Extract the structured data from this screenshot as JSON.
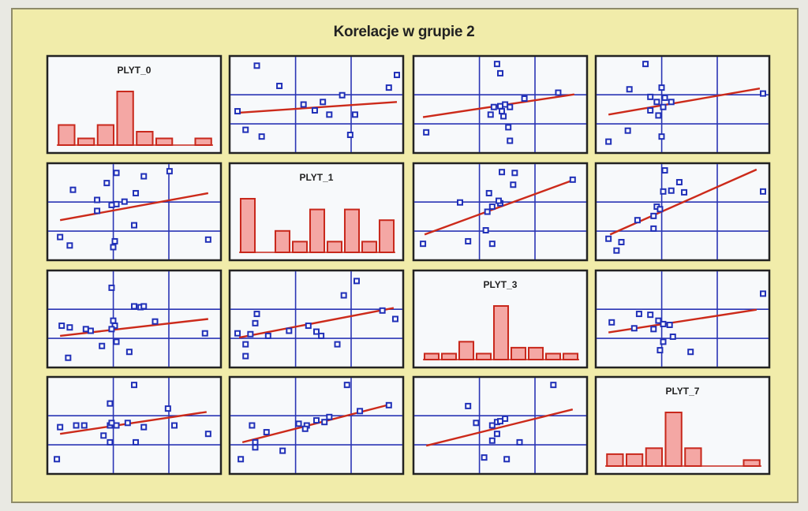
{
  "title": "Korelacje w grupie 2",
  "colors": {
    "background": "#f1ecaa",
    "panel": "#f7f9fb",
    "border": "#222222",
    "grid": "#2a35b5",
    "points": "#2030b8",
    "trend": "#cc2a1a",
    "bar_fill": "#f4a7a4",
    "bar_edge": "#c8281c"
  },
  "chart_data": {
    "type": "scatter",
    "variables": [
      "PLYT_0",
      "PLYT_1",
      "PLYT_3",
      "PLYT_7"
    ],
    "cells": [
      {
        "row": 0,
        "col": 0,
        "kind": "histogram",
        "label": "PLYT_0",
        "values": [
          3,
          1,
          3,
          8,
          2,
          1,
          0,
          1
        ]
      },
      {
        "row": 0,
        "col": 1,
        "kind": "scatter",
        "trend": [
          [
            0,
            0.4
          ],
          [
            1,
            0.53
          ]
        ],
        "points": [
          [
            0.13,
            0.96
          ],
          [
            0.01,
            0.42
          ],
          [
            0.27,
            0.72
          ],
          [
            0.49,
            0.43
          ],
          [
            0.54,
            0.53
          ],
          [
            0.06,
            0.2
          ],
          [
            0.16,
            0.12
          ],
          [
            0.42,
            0.5
          ],
          [
            0.58,
            0.38
          ],
          [
            0.66,
            0.61
          ],
          [
            0.74,
            0.38
          ],
          [
            0.71,
            0.14
          ],
          [
            0.95,
            0.7
          ],
          [
            1,
            0.85
          ]
        ]
      },
      {
        "row": 0,
        "col": 2,
        "kind": "scatter",
        "trend": [
          [
            0.02,
            0.35
          ],
          [
            0.96,
            0.62
          ]
        ],
        "points": [
          [
            0.48,
            0.98
          ],
          [
            0.5,
            0.87
          ],
          [
            0.51,
            0.42
          ],
          [
            0.44,
            0.38
          ],
          [
            0.46,
            0.47
          ],
          [
            0.5,
            0.48
          ],
          [
            0.53,
            0.5
          ],
          [
            0.56,
            0.47
          ],
          [
            0.65,
            0.57
          ],
          [
            0.52,
            0.36
          ],
          [
            0.55,
            0.23
          ],
          [
            0.56,
            0.07
          ],
          [
            0.86,
            0.64
          ],
          [
            0.04,
            0.17
          ]
        ]
      },
      {
        "row": 0,
        "col": 3,
        "kind": "scatter",
        "trend": [
          [
            0.04,
            0.38
          ],
          [
            0.98,
            0.69
          ]
        ],
        "points": [
          [
            0.27,
            0.98
          ],
          [
            0.17,
            0.68
          ],
          [
            0.37,
            0.7
          ],
          [
            0.3,
            0.43
          ],
          [
            0.34,
            0.53
          ],
          [
            0.3,
            0.59
          ],
          [
            0.38,
            0.47
          ],
          [
            0.39,
            0.58
          ],
          [
            0.43,
            0.53
          ],
          [
            0.35,
            0.37
          ],
          [
            0.37,
            0.12
          ],
          [
            0.16,
            0.19
          ],
          [
            0.04,
            0.06
          ],
          [
            1,
            0.63
          ]
        ]
      },
      {
        "row": 1,
        "col": 0,
        "kind": "scatter",
        "trend": [
          [
            0.04,
            0.4
          ],
          [
            0.96,
            0.72
          ]
        ],
        "points": [
          [
            0.39,
            0.96
          ],
          [
            0.56,
            0.92
          ],
          [
            0.72,
            0.98
          ],
          [
            0.33,
            0.84
          ],
          [
            0.12,
            0.76
          ],
          [
            0.51,
            0.72
          ],
          [
            0.27,
            0.64
          ],
          [
            0.36,
            0.58
          ],
          [
            0.39,
            0.59
          ],
          [
            0.44,
            0.62
          ],
          [
            0.27,
            0.51
          ],
          [
            0.5,
            0.34
          ],
          [
            0.04,
            0.2
          ],
          [
            0.1,
            0.1
          ],
          [
            0.37,
            0.08
          ],
          [
            0.38,
            0.15
          ],
          [
            0.96,
            0.17
          ]
        ]
      },
      {
        "row": 1,
        "col": 1,
        "kind": "histogram",
        "label": "PLYT_1",
        "values": [
          5,
          0,
          2,
          1,
          4,
          1,
          4,
          1,
          3
        ]
      },
      {
        "row": 1,
        "col": 2,
        "kind": "scatter",
        "trend": [
          [
            0.03,
            0.23
          ],
          [
            0.96,
            0.88
          ]
        ],
        "points": [
          [
            0.51,
            0.97
          ],
          [
            0.59,
            0.96
          ],
          [
            0.58,
            0.82
          ],
          [
            0.43,
            0.72
          ],
          [
            0.5,
            0.6
          ],
          [
            0.49,
            0.63
          ],
          [
            0.45,
            0.56
          ],
          [
            0.25,
            0.61
          ],
          [
            0.95,
            0.88
          ],
          [
            0.42,
            0.5
          ],
          [
            0.41,
            0.28
          ],
          [
            0.45,
            0.12
          ],
          [
            0.3,
            0.15
          ],
          [
            0.02,
            0.12
          ]
        ]
      },
      {
        "row": 1,
        "col": 3,
        "kind": "scatter",
        "trend": [
          [
            0.05,
            0.23
          ],
          [
            0.96,
            1
          ]
        ],
        "points": [
          [
            0.39,
            0.99
          ],
          [
            0.48,
            0.85
          ],
          [
            0.43,
            0.75
          ],
          [
            0.38,
            0.74
          ],
          [
            0.51,
            0.73
          ],
          [
            0.34,
            0.56
          ],
          [
            0.36,
            0.53
          ],
          [
            0.32,
            0.45
          ],
          [
            0.22,
            0.4
          ],
          [
            0.32,
            0.3
          ],
          [
            0.04,
            0.18
          ],
          [
            0.12,
            0.14
          ],
          [
            0.09,
            0.04
          ],
          [
            1,
            0.74
          ]
        ]
      },
      {
        "row": 2,
        "col": 0,
        "kind": "scatter",
        "trend": [
          [
            0.04,
            0.3
          ],
          [
            0.96,
            0.5
          ]
        ],
        "points": [
          [
            0.36,
            0.87
          ],
          [
            0.54,
            0.64
          ],
          [
            0.56,
            0.65
          ],
          [
            0.5,
            0.65
          ],
          [
            0.37,
            0.48
          ],
          [
            0.38,
            0.42
          ],
          [
            0.36,
            0.38
          ],
          [
            0.2,
            0.38
          ],
          [
            0.23,
            0.36
          ],
          [
            0.1,
            0.4
          ],
          [
            0.05,
            0.42
          ],
          [
            0.63,
            0.47
          ],
          [
            0.94,
            0.33
          ],
          [
            0.39,
            0.23
          ],
          [
            0.3,
            0.18
          ],
          [
            0.47,
            0.11
          ],
          [
            0.09,
            0.04
          ]
        ]
      },
      {
        "row": 2,
        "col": 1,
        "kind": "scatter",
        "trend": [
          [
            0.02,
            0.28
          ],
          [
            0.98,
            0.63
          ]
        ],
        "points": [
          [
            0.75,
            0.95
          ],
          [
            0.67,
            0.78
          ],
          [
            0.91,
            0.6
          ],
          [
            0.99,
            0.5
          ],
          [
            0.45,
            0.42
          ],
          [
            0.5,
            0.35
          ],
          [
            0.53,
            0.3
          ],
          [
            0.33,
            0.36
          ],
          [
            0.2,
            0.3
          ],
          [
            0.09,
            0.32
          ],
          [
            0.12,
            0.45
          ],
          [
            0.13,
            0.56
          ],
          [
            0.01,
            0.33
          ],
          [
            0.06,
            0.2
          ],
          [
            0.06,
            0.06
          ],
          [
            0.63,
            0.2
          ]
        ]
      },
      {
        "row": 2,
        "col": 2,
        "kind": "histogram",
        "label": "PLYT_3",
        "values": [
          1,
          1,
          3,
          1,
          9,
          2,
          2,
          1,
          1
        ]
      },
      {
        "row": 2,
        "col": 3,
        "kind": "scatter",
        "trend": [
          [
            0.04,
            0.34
          ],
          [
            0.96,
            0.61
          ]
        ],
        "points": [
          [
            1,
            0.8
          ],
          [
            0.23,
            0.56
          ],
          [
            0.3,
            0.55
          ],
          [
            0.35,
            0.48
          ],
          [
            0.38,
            0.44
          ],
          [
            0.42,
            0.43
          ],
          [
            0.32,
            0.38
          ],
          [
            0.2,
            0.39
          ],
          [
            0.06,
            0.46
          ],
          [
            0.44,
            0.29
          ],
          [
            0.38,
            0.23
          ],
          [
            0.36,
            0.13
          ],
          [
            0.55,
            0.11
          ]
        ]
      },
      {
        "row": 3,
        "col": 0,
        "kind": "scatter",
        "trend": [
          [
            0.04,
            0.4
          ],
          [
            0.95,
            0.66
          ]
        ],
        "points": [
          [
            0.5,
            0.98
          ],
          [
            0.35,
            0.76
          ],
          [
            0.35,
            0.5
          ],
          [
            0.36,
            0.53
          ],
          [
            0.39,
            0.5
          ],
          [
            0.46,
            0.53
          ],
          [
            0.56,
            0.48
          ],
          [
            0.71,
            0.7
          ],
          [
            0.75,
            0.5
          ],
          [
            0.14,
            0.5
          ],
          [
            0.19,
            0.5
          ],
          [
            0.04,
            0.48
          ],
          [
            0.31,
            0.38
          ],
          [
            0.51,
            0.3
          ],
          [
            0.35,
            0.3
          ],
          [
            0.96,
            0.4
          ],
          [
            0.02,
            0.1
          ]
        ]
      },
      {
        "row": 3,
        "col": 1,
        "kind": "scatter",
        "trend": [
          [
            0.04,
            0.3
          ],
          [
            0.96,
            0.75
          ]
        ],
        "points": [
          [
            0.69,
            0.98
          ],
          [
            0.95,
            0.74
          ],
          [
            0.77,
            0.67
          ],
          [
            0.58,
            0.6
          ],
          [
            0.55,
            0.54
          ],
          [
            0.5,
            0.56
          ],
          [
            0.44,
            0.5
          ],
          [
            0.43,
            0.46
          ],
          [
            0.39,
            0.52
          ],
          [
            0.1,
            0.5
          ],
          [
            0.19,
            0.42
          ],
          [
            0.12,
            0.3
          ],
          [
            0.12,
            0.24
          ],
          [
            0.29,
            0.2
          ],
          [
            0.03,
            0.1
          ]
        ]
      },
      {
        "row": 3,
        "col": 2,
        "kind": "scatter",
        "trend": [
          [
            0.04,
            0.26
          ],
          [
            0.95,
            0.69
          ]
        ],
        "points": [
          [
            0.83,
            0.98
          ],
          [
            0.3,
            0.73
          ],
          [
            0.35,
            0.53
          ],
          [
            0.45,
            0.5
          ],
          [
            0.48,
            0.54
          ],
          [
            0.5,
            0.55
          ],
          [
            0.53,
            0.58
          ],
          [
            0.48,
            0.4
          ],
          [
            0.62,
            0.3
          ],
          [
            0.45,
            0.32
          ],
          [
            0.4,
            0.12
          ],
          [
            0.54,
            0.1
          ]
        ]
      },
      {
        "row": 3,
        "col": 3,
        "kind": "histogram",
        "label": "PLYT_7",
        "values": [
          2,
          2,
          3,
          9,
          3,
          0,
          0,
          1
        ]
      }
    ]
  }
}
